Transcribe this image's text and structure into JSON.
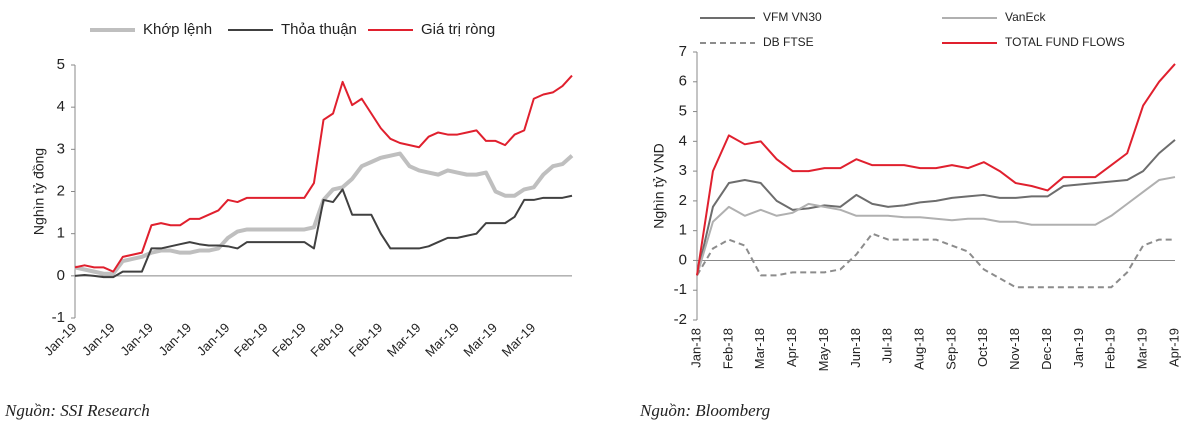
{
  "chart_data": [
    {
      "type": "line",
      "y_label": "Nghìn tỷ đồng",
      "source": "Nguồn: SSI Research",
      "legend": "top",
      "categories": [
        "Jan-19",
        null,
        null,
        null,
        "Jan-19",
        null,
        null,
        null,
        "Jan-19",
        null,
        null,
        null,
        "Jan-19",
        null,
        null,
        null,
        "Jan-19",
        null,
        null,
        null,
        "Feb-19",
        null,
        null,
        null,
        "Feb-19",
        null,
        null,
        null,
        "Feb-19",
        null,
        null,
        null,
        "Feb-19",
        null,
        null,
        null,
        "Mar-19",
        null,
        null,
        null,
        "Mar-19",
        null,
        null,
        null,
        "Mar-19",
        null,
        null,
        null,
        "Mar-19",
        null,
        null,
        null,
        null
      ],
      "ylim": [
        -1,
        5
      ],
      "yticks": [
        -1,
        0,
        1,
        2,
        3,
        4,
        5
      ],
      "series": [
        {
          "name": "Khớp lệnh",
          "color": "#bfbfbf",
          "width": 4,
          "values": [
            0.2,
            0.15,
            0.1,
            0.05,
            0.05,
            0.35,
            0.4,
            0.45,
            0.55,
            0.6,
            0.6,
            0.55,
            0.55,
            0.6,
            0.6,
            0.65,
            0.9,
            1.05,
            1.1,
            1.1,
            1.1,
            1.1,
            1.1,
            1.1,
            1.1,
            1.15,
            1.8,
            2.05,
            2.1,
            2.3,
            2.6,
            2.7,
            2.8,
            2.85,
            2.9,
            2.6,
            2.5,
            2.45,
            2.4,
            2.5,
            2.45,
            2.4,
            2.4,
            2.45,
            2.0,
            1.9,
            1.9,
            2.05,
            2.1,
            2.4,
            2.6,
            2.65,
            2.85
          ]
        },
        {
          "name": "Thỏa thuận",
          "color": "#404040",
          "width": 2,
          "values": [
            0.0,
            0.02,
            0.0,
            -0.03,
            -0.03,
            0.1,
            0.1,
            0.1,
            0.65,
            0.65,
            0.7,
            0.75,
            0.8,
            0.75,
            0.72,
            0.72,
            0.7,
            0.65,
            0.8,
            0.8,
            0.8,
            0.8,
            0.8,
            0.8,
            0.8,
            0.65,
            1.8,
            1.75,
            2.05,
            1.45,
            1.45,
            1.45,
            1.0,
            0.65,
            0.65,
            0.65,
            0.65,
            0.7,
            0.8,
            0.9,
            0.9,
            0.95,
            1.0,
            1.25,
            1.25,
            1.25,
            1.4,
            1.8,
            1.8,
            1.85,
            1.85,
            1.85,
            1.9
          ]
        },
        {
          "name": "Giá trị ròng",
          "color": "#e0202e",
          "width": 2,
          "values": [
            0.2,
            0.25,
            0.2,
            0.2,
            0.1,
            0.45,
            0.5,
            0.55,
            1.2,
            1.25,
            1.2,
            1.2,
            1.35,
            1.35,
            1.45,
            1.55,
            1.8,
            1.75,
            1.85,
            1.85,
            1.85,
            1.85,
            1.85,
            1.85,
            1.85,
            2.2,
            3.7,
            3.85,
            4.6,
            4.05,
            4.2,
            3.85,
            3.5,
            3.25,
            3.15,
            3.1,
            3.05,
            3.3,
            3.4,
            3.35,
            3.35,
            3.4,
            3.45,
            3.2,
            3.2,
            3.1,
            3.35,
            3.45,
            4.2,
            4.3,
            4.35,
            4.5,
            4.75
          ]
        }
      ]
    },
    {
      "type": "line",
      "y_label": "Nghìn tỷ VND",
      "source": "Nguồn: Bloomberg",
      "legend": "top",
      "categories": [
        "Jan-18",
        null,
        "Feb-18",
        null,
        "Mar-18",
        null,
        "Apr-18",
        null,
        "May-18",
        null,
        "Jun-18",
        null,
        "Jul-18",
        null,
        "Aug-18",
        null,
        "Sep-18",
        null,
        "Oct-18",
        null,
        "Nov-18",
        null,
        "Dec-18",
        null,
        "Jan-19",
        null,
        "Feb-19",
        null,
        "Mar-19",
        null,
        "Apr-19"
      ],
      "ylim": [
        -2,
        7
      ],
      "yticks": [
        -2,
        -1,
        0,
        1,
        2,
        3,
        4,
        5,
        6,
        7
      ],
      "series": [
        {
          "name": "VFM VN30",
          "color": "#6d6d6d",
          "width": 2,
          "values": [
            -0.5,
            1.8,
            2.6,
            2.7,
            2.6,
            2.0,
            1.7,
            1.75,
            1.85,
            1.8,
            2.2,
            1.9,
            1.8,
            1.85,
            1.95,
            2.0,
            2.1,
            2.15,
            2.2,
            2.1,
            2.1,
            2.15,
            2.15,
            2.5,
            2.55,
            2.6,
            2.65,
            2.7,
            3.0,
            3.6,
            4.05
          ]
        },
        {
          "name": "VanEck",
          "color": "#b0b0b0",
          "width": 2,
          "values": [
            -0.5,
            1.3,
            1.8,
            1.5,
            1.7,
            1.5,
            1.6,
            1.9,
            1.8,
            1.7,
            1.5,
            1.5,
            1.5,
            1.45,
            1.45,
            1.4,
            1.35,
            1.4,
            1.4,
            1.3,
            1.3,
            1.2,
            1.2,
            1.2,
            1.2,
            1.2,
            1.5,
            1.9,
            2.3,
            2.7,
            2.8
          ]
        },
        {
          "name": "DB FTSE",
          "color": "#8c8c8c",
          "width": 2,
          "dashed": true,
          "values": [
            -0.5,
            0.4,
            0.7,
            0.5,
            -0.5,
            -0.5,
            -0.4,
            -0.4,
            -0.4,
            -0.3,
            0.2,
            0.9,
            0.7,
            0.7,
            0.7,
            0.7,
            0.5,
            0.3,
            -0.3,
            -0.6,
            -0.9,
            -0.9,
            -0.9,
            -0.9,
            -0.9,
            -0.9,
            -0.9,
            -0.4,
            0.5,
            0.7,
            0.7
          ]
        },
        {
          "name": "TOTAL FUND FLOWS",
          "color": "#e0202e",
          "width": 2,
          "values": [
            -0.5,
            3.0,
            4.2,
            3.9,
            4.0,
            3.4,
            3.0,
            3.0,
            3.1,
            3.1,
            3.4,
            3.2,
            3.2,
            3.2,
            3.1,
            3.1,
            3.2,
            3.1,
            3.3,
            3.0,
            2.6,
            2.5,
            2.35,
            2.8,
            2.8,
            2.8,
            3.2,
            3.6,
            5.2,
            6.0,
            6.6
          ]
        }
      ]
    }
  ]
}
